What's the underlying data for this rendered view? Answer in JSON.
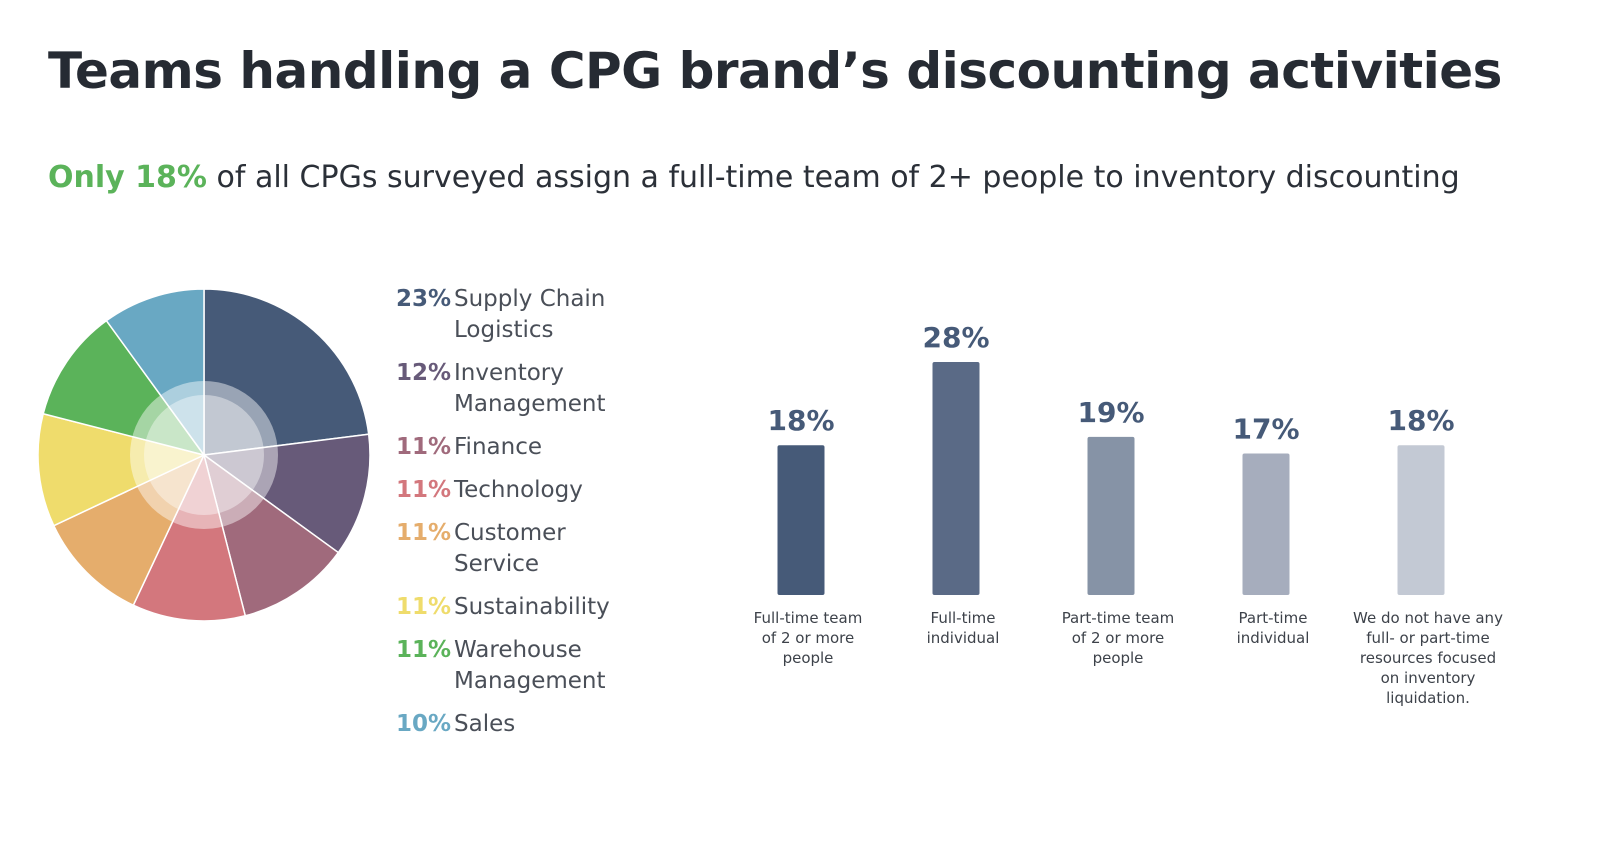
{
  "header": {
    "title": "Teams handling a CPG brand’s discounting activities",
    "subtitle_highlight": "Only 18%",
    "subtitle_rest": " of all CPGs surveyed assign a full-time team of 2+ people to inventory discounting"
  },
  "chart_data": [
    {
      "type": "pie",
      "categories": [
        "Supply Chain Logistics",
        "Inventory Management",
        "Finance",
        "Technology",
        "Customer Service",
        "Sustainability",
        "Warehouse Management",
        "Sales"
      ],
      "values": [
        23,
        12,
        11,
        11,
        11,
        11,
        11,
        10
      ],
      "value_labels": [
        "23%",
        "12%",
        "11%",
        "11%",
        "11%",
        "11%",
        "11%",
        "10%"
      ],
      "colors": [
        "#465a78",
        "#675a79",
        "#a06a7c",
        "#d3777d",
        "#e5ad6c",
        "#efdc6c",
        "#5bb35a",
        "#69a8c3"
      ],
      "legend_lines": [
        [
          "Supply Chain",
          "Logistics"
        ],
        [
          "Inventory",
          "Management"
        ],
        [
          "Finance"
        ],
        [
          "Technology"
        ],
        [
          "Customer",
          "Service"
        ],
        [
          "Sustainability"
        ],
        [
          "Warehouse",
          "Management"
        ],
        [
          "Sales"
        ]
      ],
      "legend_position": "right"
    },
    {
      "type": "bar",
      "categories": [
        [
          "Full-time team",
          "of 2 or more",
          "people"
        ],
        [
          "Full-time",
          "individual"
        ],
        [
          "Part-time team",
          "of 2 or more",
          "people"
        ],
        [
          "Part-time",
          "individual"
        ],
        [
          "We do not have any",
          "full- or part-time",
          "resources focused",
          "on inventory",
          "liquidation."
        ]
      ],
      "values": [
        18,
        28,
        19,
        17,
        18
      ],
      "value_labels": [
        "18%",
        "28%",
        "19%",
        "17%",
        "18%"
      ],
      "colors": [
        "#465a78",
        "#5a6a86",
        "#8693a6",
        "#a6adbd",
        "#c3c9d4"
      ],
      "ylim": [
        0,
        28
      ],
      "grid": false
    }
  ]
}
